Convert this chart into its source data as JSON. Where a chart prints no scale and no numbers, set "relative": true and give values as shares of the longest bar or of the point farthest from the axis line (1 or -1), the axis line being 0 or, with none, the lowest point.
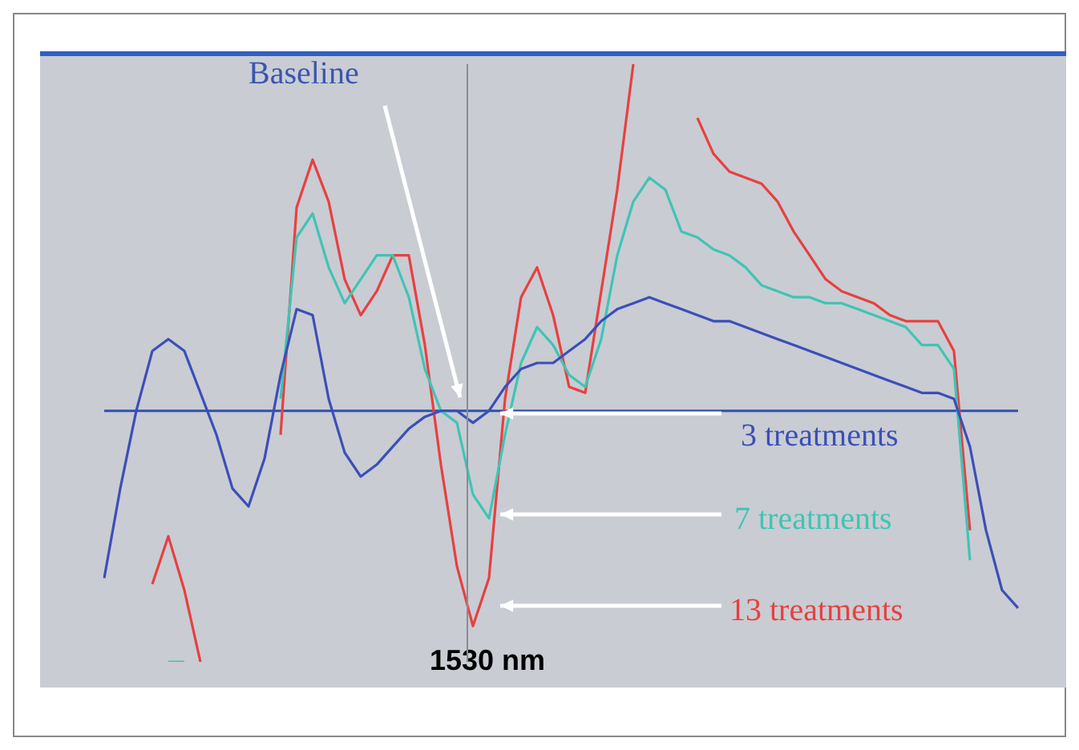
{
  "chart_data": {
    "type": "line",
    "relative": true,
    "marker": "none",
    "categories": [
      null,
      null,
      null,
      null,
      null,
      null,
      null,
      null,
      null,
      null,
      null,
      null,
      null,
      null,
      null,
      null,
      null,
      null,
      null,
      null,
      null,
      null,
      null,
      null,
      null,
      null,
      null,
      null,
      null,
      null,
      null,
      null,
      null,
      null,
      null,
      null,
      null,
      null,
      null,
      null,
      null,
      null,
      null,
      null,
      null,
      null,
      null,
      null,
      null,
      null,
      null,
      null,
      null,
      null,
      null,
      null,
      null,
      null
    ],
    "series": [
      {
        "name": "3 treatments",
        "color": "#3b4fb8",
        "values": [
          0.14,
          0.29,
          0.42,
          0.52,
          0.54,
          0.52,
          0.45,
          0.38,
          0.29,
          0.26,
          0.34,
          0.48,
          0.59,
          0.58,
          0.44,
          0.35,
          0.31,
          0.33,
          0.36,
          0.39,
          0.41,
          0.42,
          0.42,
          0.4,
          0.42,
          0.46,
          0.49,
          0.5,
          0.5,
          0.52,
          0.54,
          0.57,
          0.59,
          0.6,
          0.61,
          0.6,
          0.59,
          0.58,
          0.57,
          0.57,
          0.56,
          0.55,
          0.54,
          0.53,
          0.52,
          0.51,
          0.5,
          0.49,
          0.48,
          0.47,
          0.46,
          0.45,
          0.45,
          0.44,
          0.36,
          0.22,
          0.12,
          0.09
        ]
      },
      {
        "name": "7 treatments",
        "color": "#40c4b4",
        "values": [
          null,
          null,
          null,
          null,
          0,
          0,
          null,
          null,
          null,
          null,
          null,
          0.44,
          0.71,
          0.75,
          0.66,
          0.6,
          0.64,
          0.68,
          0.68,
          0.61,
          0.49,
          0.42,
          0.4,
          0.28,
          0.24,
          0.38,
          0.5,
          0.56,
          0.53,
          0.48,
          0.46,
          0.54,
          0.68,
          0.77,
          0.81,
          0.79,
          0.72,
          0.71,
          0.69,
          0.68,
          0.66,
          0.63,
          0.62,
          0.61,
          0.61,
          0.6,
          0.6,
          0.59,
          0.58,
          0.57,
          0.56,
          0.53,
          0.53,
          0.49,
          0.17,
          null,
          null,
          null
        ]
      },
      {
        "name": "13 treatments",
        "color": "#e84040",
        "values": [
          null,
          null,
          null,
          0.13,
          0.21,
          0.12,
          0,
          null,
          null,
          null,
          null,
          0.38,
          0.76,
          0.84,
          0.77,
          0.64,
          0.58,
          0.62,
          0.68,
          0.68,
          0.53,
          0.33,
          0.16,
          0.06,
          0.14,
          0.44,
          0.61,
          0.66,
          0.58,
          0.46,
          0.45,
          0.62,
          0.79,
          1,
          null,
          null,
          null,
          0.91,
          0.85,
          0.82,
          0.81,
          0.8,
          0.77,
          0.72,
          0.68,
          0.64,
          0.62,
          0.61,
          0.6,
          0.58,
          0.57,
          0.57,
          0.57,
          0.52,
          0.22,
          null,
          null,
          null
        ]
      }
    ],
    "ref_lines": [
      {
        "axis": "y",
        "value": 0.42,
        "color": "#3050b0"
      }
    ],
    "annotations": [
      "Baseline",
      "1530 nm"
    ]
  }
}
